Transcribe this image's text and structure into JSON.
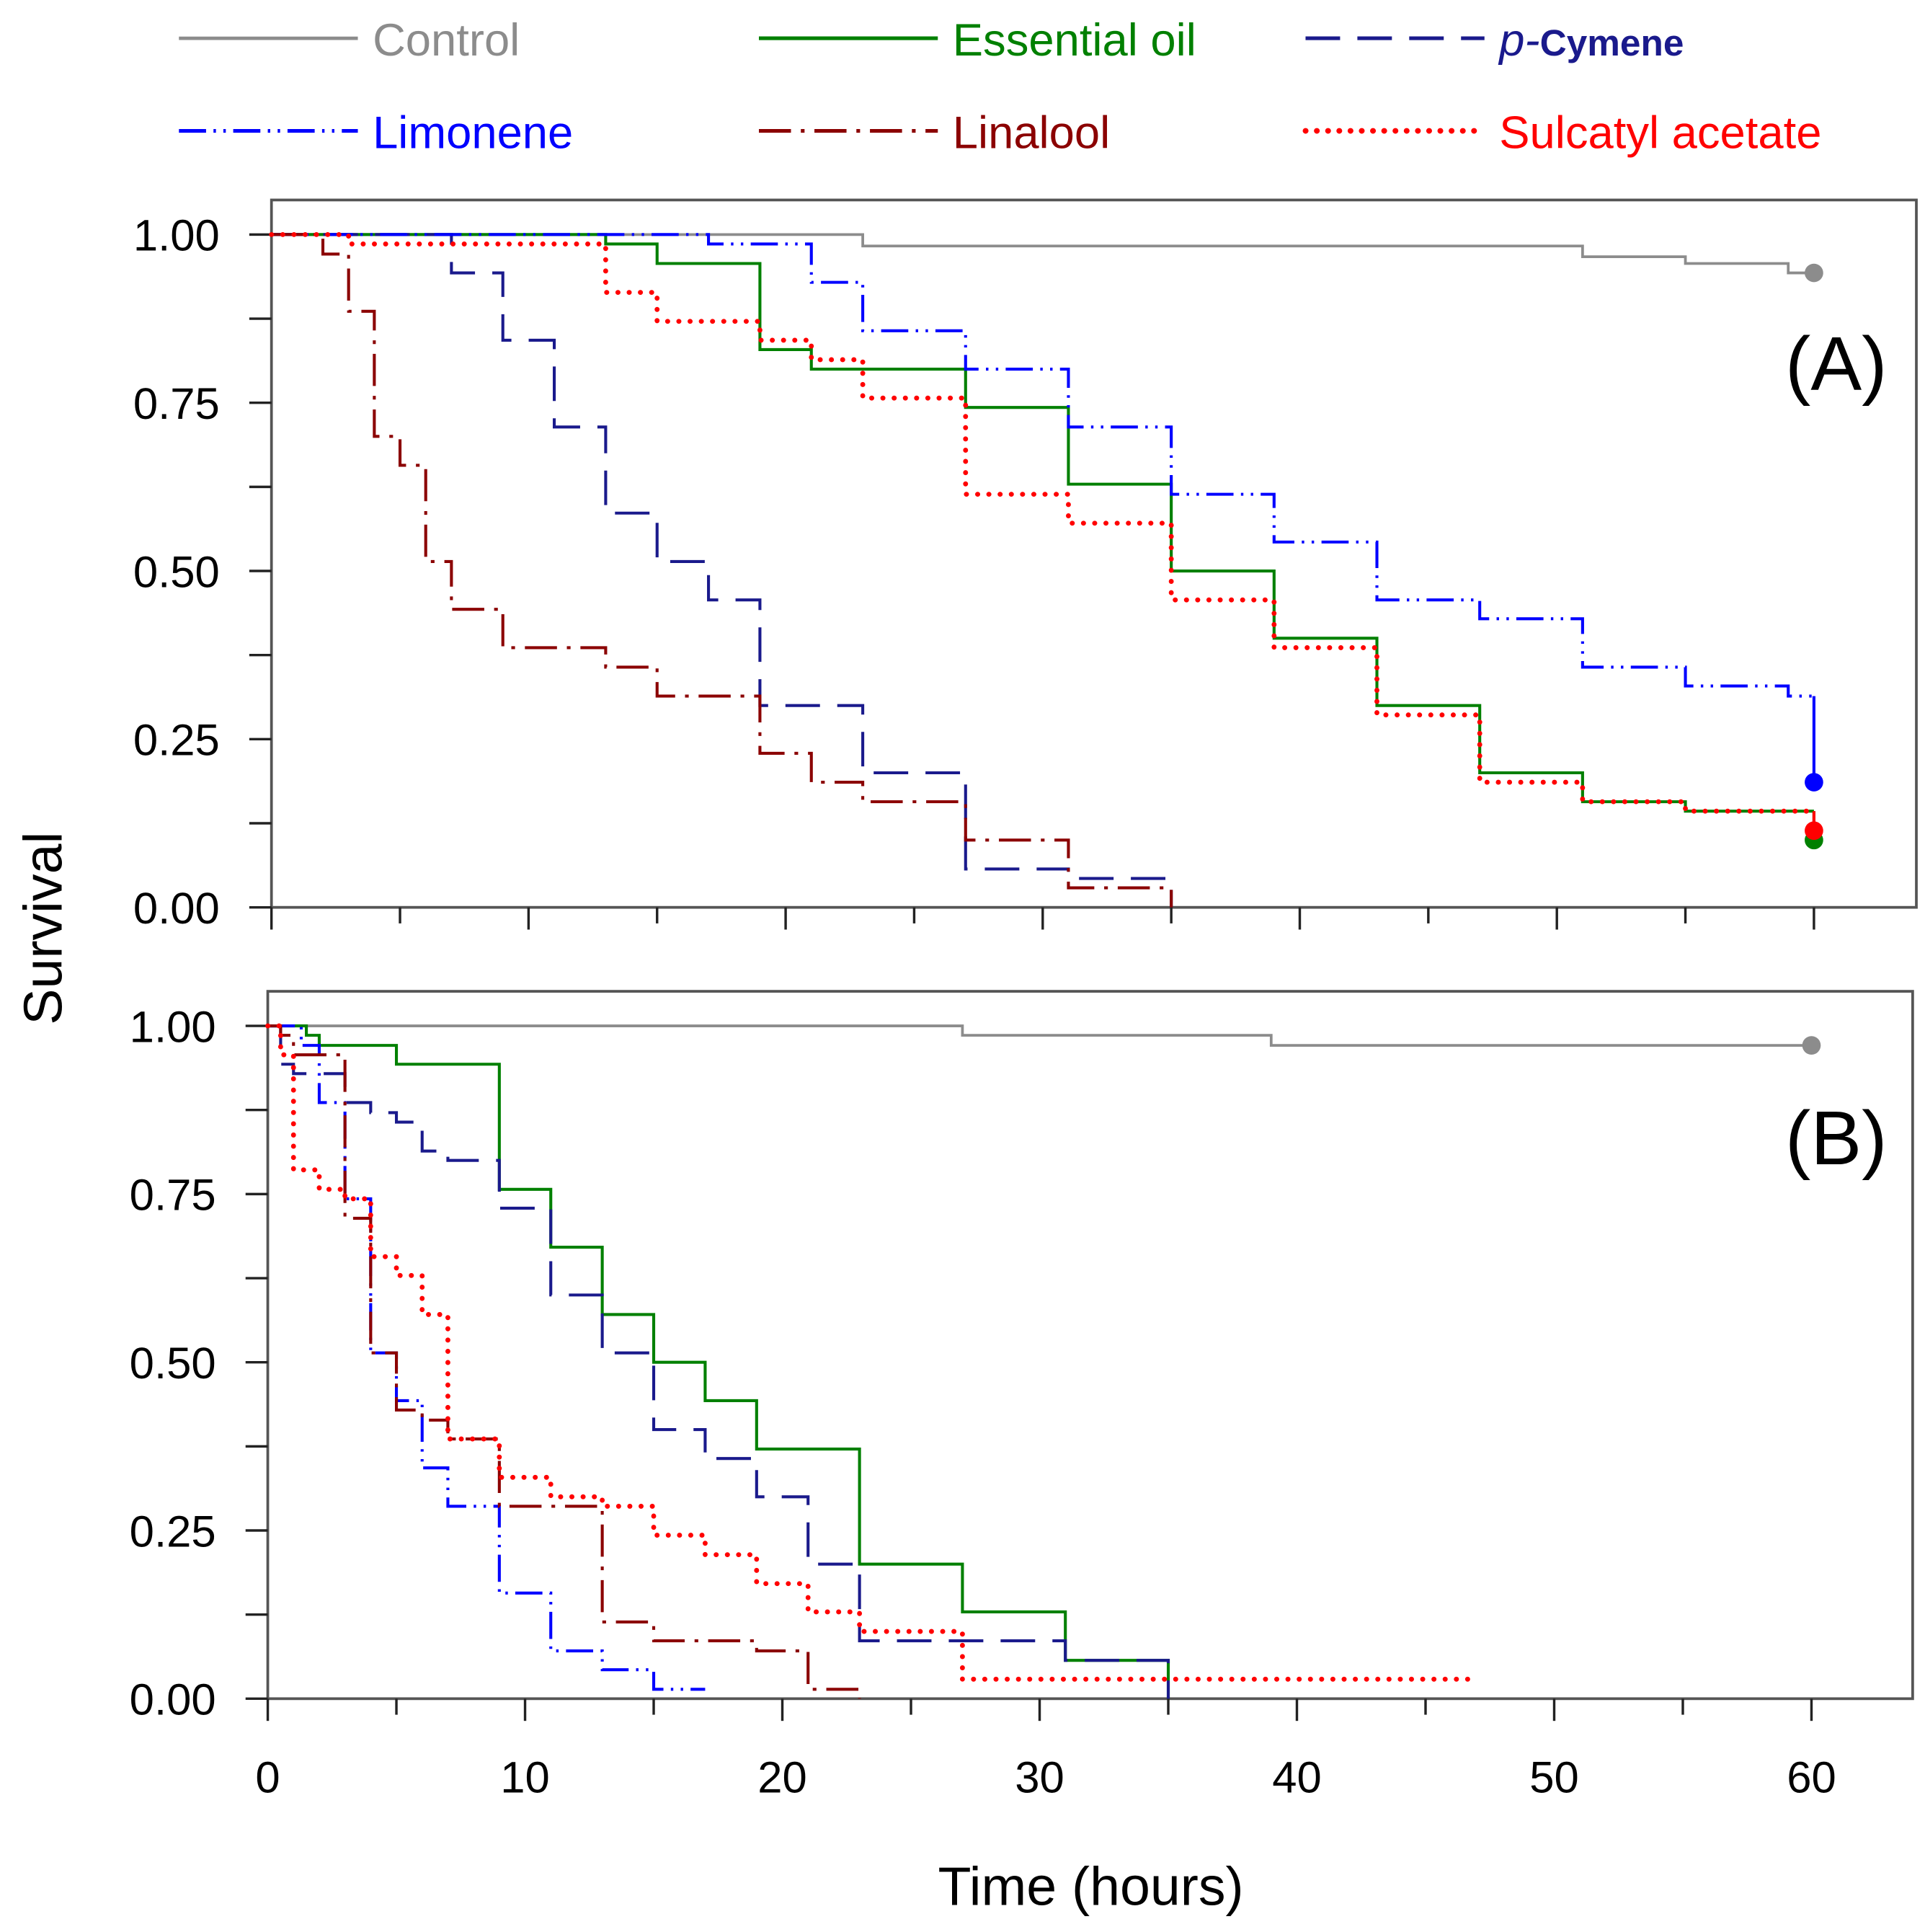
{
  "chart_data": {
    "type": "line",
    "subtype": "kaplan-meier step survival curves",
    "xlabel": "Time (hours)",
    "ylabel": "Survival",
    "xlim": [
      0,
      60
    ],
    "ylim": [
      0,
      1
    ],
    "x_ticks": [
      0,
      10,
      20,
      30,
      40,
      50,
      60
    ],
    "y_ticks": [
      "0.00",
      "0.25",
      "0.50",
      "0.75",
      "1.00"
    ],
    "grid": false,
    "legend": {
      "placement": "top",
      "entries": [
        {
          "key": "control",
          "label": "Control",
          "color": "#8c8c8c"
        },
        {
          "key": "eo",
          "label": "Essential oil",
          "color": "#008000"
        },
        {
          "key": "pc",
          "label_prefix": "p-",
          "label": "Cymene",
          "color": "#1a1a8c"
        },
        {
          "key": "lim",
          "label": "Limonene",
          "color": "#0000ff"
        },
        {
          "key": "lin",
          "label": "Linalool",
          "color": "#8b0000"
        },
        {
          "key": "sul",
          "label": "Sulcatyl acetate",
          "color": "#ff0000"
        }
      ]
    },
    "panels": [
      {
        "label": "(A)",
        "series": [
          {
            "key": "control",
            "steps": [
              [
                0,
                1
              ],
              [
                23,
                0.983
              ],
              [
                51,
                0.967
              ],
              [
                55,
                0.957
              ],
              [
                59,
                0.943
              ]
            ],
            "end": 60,
            "end_marker": 0.943
          },
          {
            "key": "eo",
            "steps": [
              [
                0,
                1
              ],
              [
                13,
                0.986
              ],
              [
                15,
                0.957
              ],
              [
                19,
                0.829
              ],
              [
                21,
                0.8
              ],
              [
                27,
                0.743
              ],
              [
                31,
                0.629
              ],
              [
                35,
                0.5
              ],
              [
                39,
                0.4
              ],
              [
                43,
                0.3
              ],
              [
                47,
                0.2
              ],
              [
                51,
                0.157
              ],
              [
                55,
                0.143
              ]
            ],
            "end": 60,
            "end_marker": 0.1
          },
          {
            "key": "pc",
            "steps": [
              [
                0,
                1
              ],
              [
                7,
                0.943
              ],
              [
                9,
                0.843
              ],
              [
                11,
                0.714
              ],
              [
                13,
                0.586
              ],
              [
                15,
                0.514
              ],
              [
                17,
                0.457
              ],
              [
                19,
                0.3
              ],
              [
                23,
                0.2
              ],
              [
                27,
                0.057
              ],
              [
                31,
                0.043
              ],
              [
                35,
                0
              ]
            ],
            "end": 35
          },
          {
            "key": "lim",
            "steps": [
              [
                0,
                1
              ],
              [
                17,
                0.986
              ],
              [
                21,
                0.929
              ],
              [
                23,
                0.857
              ],
              [
                27,
                0.8
              ],
              [
                31,
                0.714
              ],
              [
                35,
                0.614
              ],
              [
                39,
                0.543
              ],
              [
                43,
                0.457
              ],
              [
                47,
                0.429
              ],
              [
                51,
                0.357
              ],
              [
                55,
                0.329
              ],
              [
                59,
                0.314
              ]
            ],
            "end": 60,
            "end_marker": 0.186
          },
          {
            "key": "lin",
            "steps": [
              [
                0,
                1
              ],
              [
                2,
                0.971
              ],
              [
                3,
                0.886
              ],
              [
                4,
                0.7
              ],
              [
                5,
                0.657
              ],
              [
                6,
                0.514
              ],
              [
                7,
                0.443
              ],
              [
                9,
                0.386
              ],
              [
                13,
                0.357
              ],
              [
                15,
                0.314
              ],
              [
                19,
                0.229
              ],
              [
                21,
                0.186
              ],
              [
                23,
                0.157
              ],
              [
                27,
                0.1
              ],
              [
                31,
                0.029
              ],
              [
                35,
                0
              ]
            ],
            "end": 35
          },
          {
            "key": "sul",
            "steps": [
              [
                0,
                1
              ],
              [
                3,
                0.986
              ],
              [
                13,
                0.914
              ],
              [
                15,
                0.871
              ],
              [
                19,
                0.843
              ],
              [
                21,
                0.814
              ],
              [
                23,
                0.757
              ],
              [
                27,
                0.614
              ],
              [
                31,
                0.571
              ],
              [
                35,
                0.457
              ],
              [
                39,
                0.386
              ],
              [
                43,
                0.286
              ],
              [
                47,
                0.186
              ],
              [
                51,
                0.157
              ],
              [
                55,
                0.143
              ]
            ],
            "end": 60,
            "end_marker": 0.114
          }
        ]
      },
      {
        "label": "(B)",
        "series": [
          {
            "key": "control",
            "steps": [
              [
                0,
                1
              ],
              [
                27,
                0.986
              ],
              [
                39,
                0.971
              ]
            ],
            "end": 60,
            "end_marker": 0.971
          },
          {
            "key": "eo",
            "steps": [
              [
                0,
                1
              ],
              [
                1.5,
                0.986
              ],
              [
                2,
                0.971
              ],
              [
                5,
                0.943
              ],
              [
                9,
                0.757
              ],
              [
                11,
                0.671
              ],
              [
                13,
                0.571
              ],
              [
                15,
                0.5
              ],
              [
                17,
                0.443
              ],
              [
                19,
                0.371
              ],
              [
                23,
                0.2
              ],
              [
                27,
                0.129
              ],
              [
                31,
                0.057
              ],
              [
                35,
                0
              ]
            ],
            "end": 35
          },
          {
            "key": "pc",
            "steps": [
              [
                0,
                1
              ],
              [
                0.5,
                0.943
              ],
              [
                1,
                0.929
              ],
              [
                3,
                0.886
              ],
              [
                4,
                0.871
              ],
              [
                5,
                0.857
              ],
              [
                6,
                0.814
              ],
              [
                7,
                0.8
              ],
              [
                9,
                0.729
              ],
              [
                11,
                0.6
              ],
              [
                13,
                0.514
              ],
              [
                15,
                0.4
              ],
              [
                17,
                0.357
              ],
              [
                19,
                0.3
              ],
              [
                21,
                0.2
              ],
              [
                23,
                0.086
              ],
              [
                31,
                0.057
              ],
              [
                35,
                0
              ]
            ],
            "end": 35
          },
          {
            "key": "lim",
            "steps": [
              [
                0,
                1
              ],
              [
                1.3,
                0.971
              ],
              [
                2,
                0.886
              ],
              [
                3,
                0.743
              ],
              [
                4,
                0.514
              ],
              [
                5,
                0.443
              ],
              [
                6,
                0.343
              ],
              [
                7,
                0.286
              ],
              [
                9,
                0.157
              ],
              [
                11,
                0.071
              ],
              [
                13,
                0.043
              ],
              [
                15,
                0.014
              ]
            ],
            "end": 17
          },
          {
            "key": "lin",
            "steps": [
              [
                0,
                1
              ],
              [
                0.5,
                0.986
              ],
              [
                1,
                0.957
              ],
              [
                3,
                0.714
              ],
              [
                4,
                0.514
              ],
              [
                5,
                0.429
              ],
              [
                6,
                0.414
              ],
              [
                7,
                0.386
              ],
              [
                9,
                0.286
              ],
              [
                13,
                0.114
              ],
              [
                15,
                0.086
              ],
              [
                19,
                0.071
              ],
              [
                21,
                0.014
              ],
              [
                23,
                0
              ]
            ],
            "end": 23
          },
          {
            "key": "sul",
            "steps": [
              [
                0,
                1
              ],
              [
                0.5,
                0.957
              ],
              [
                1,
                0.786
              ],
              [
                2,
                0.757
              ],
              [
                3,
                0.743
              ],
              [
                4,
                0.657
              ],
              [
                5,
                0.629
              ],
              [
                6,
                0.571
              ],
              [
                7,
                0.386
              ],
              [
                9,
                0.329
              ],
              [
                11,
                0.3
              ],
              [
                13,
                0.286
              ],
              [
                15,
                0.243
              ],
              [
                17,
                0.214
              ],
              [
                19,
                0.171
              ],
              [
                21,
                0.129
              ],
              [
                23,
                0.1
              ],
              [
                27,
                0.029
              ]
            ],
            "end": 47
          }
        ]
      }
    ]
  }
}
